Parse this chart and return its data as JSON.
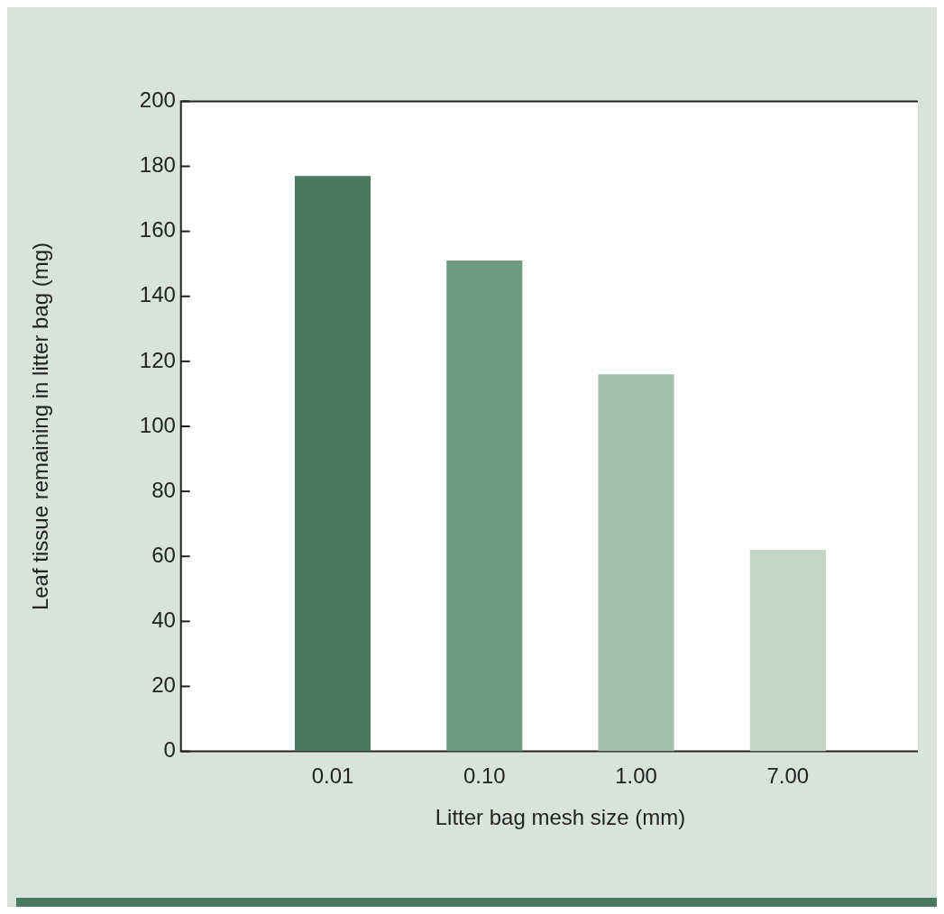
{
  "chart_data": {
    "type": "bar",
    "xlabel": "Litter bag mesh size (mm)",
    "ylabel": "Leaf tissue remaining in litter bag (mg)",
    "categories": [
      "0.01",
      "0.10",
      "1.00",
      "7.00"
    ],
    "values": [
      177,
      151,
      116,
      62
    ],
    "colors": [
      "#4a7a5e",
      "#6f9a80",
      "#a6bfad",
      "#c5d4c8"
    ],
    "ylim": [
      0,
      200
    ],
    "yticks": [
      0,
      20,
      40,
      60,
      80,
      100,
      120,
      140,
      160,
      180,
      200
    ],
    "grid": false,
    "legend": false
  }
}
